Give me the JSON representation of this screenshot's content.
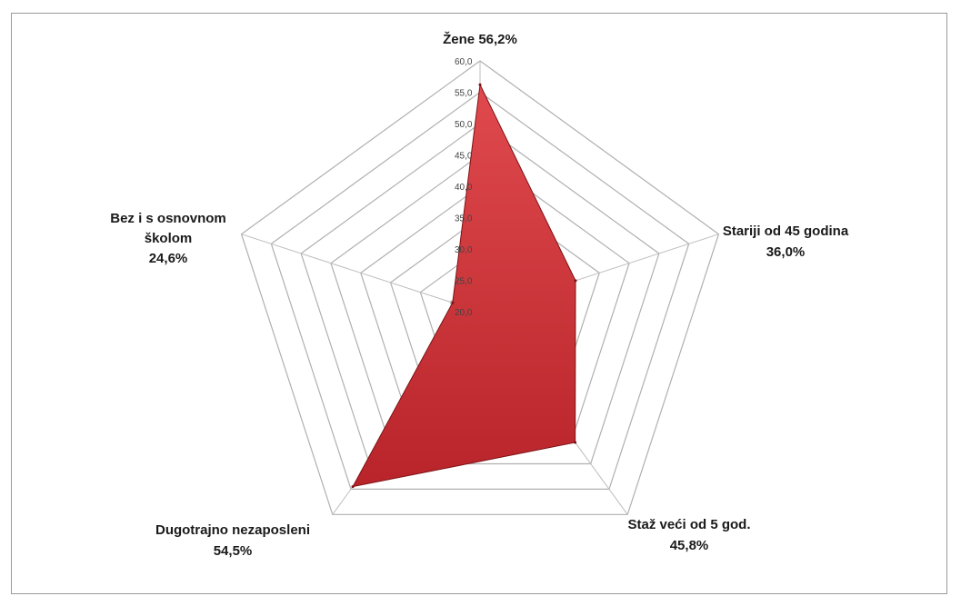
{
  "chart_data": {
    "type": "radar",
    "title": "",
    "categories": [
      "Žene",
      "Stariji od 45 godina",
      "Staž veći od 5 god.",
      "Dugotrajno nezaposleni",
      "Bez i s osnovnom školom"
    ],
    "category_lines": [
      [
        "Žene 56,2%"
      ],
      [
        "Stariji od 45 godina",
        "36,0%"
      ],
      [
        "Staž veći od 5 god.",
        "45,8%"
      ],
      [
        "Dugotrajno nezaposleni",
        "54,5%"
      ],
      [
        "Bez i s osnovnom",
        "školom",
        "24,6%"
      ]
    ],
    "series": [
      {
        "values": [
          56.2,
          36.0,
          45.8,
          54.5,
          24.6
        ]
      }
    ],
    "rlim": [
      20,
      60
    ],
    "ticks": [
      20,
      25,
      30,
      35,
      40,
      45,
      50,
      55,
      60
    ],
    "tick_labels": [
      "20,0",
      "25,0",
      "30,0",
      "35,0",
      "40,0",
      "45,0",
      "50,0",
      "55,0",
      "60,0"
    ],
    "grid": true,
    "legend": "none",
    "colors": {
      "fill": "#b8242a",
      "fill_light": "#e04a4e",
      "grid": "#b0b0b0",
      "spoke": "#bdbdbd"
    }
  }
}
